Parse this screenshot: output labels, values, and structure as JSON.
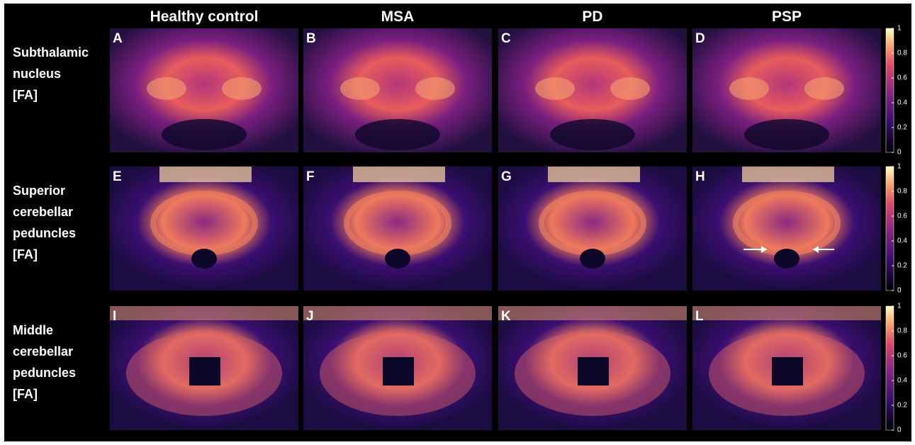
{
  "columns": [
    "Healthy control",
    "MSA",
    "PD",
    "PSP"
  ],
  "rows": [
    {
      "label": [
        "Subthalamic",
        "nucleus",
        "[FA]"
      ],
      "panels": [
        "A",
        "B",
        "C",
        "D"
      ]
    },
    {
      "label": [
        "Superior",
        "cerebellar",
        "peduncles",
        "[FA]"
      ],
      "panels": [
        "E",
        "F",
        "G",
        "H"
      ]
    },
    {
      "label": [
        "Middle",
        "cerebellar",
        "peduncles",
        "[FA]"
      ],
      "panels": [
        "I",
        "J",
        "K",
        "L"
      ]
    }
  ],
  "colorbar": {
    "range": [
      0,
      1
    ],
    "ticks": [
      0,
      0.2,
      0.4,
      0.6,
      0.8,
      1
    ]
  }
}
